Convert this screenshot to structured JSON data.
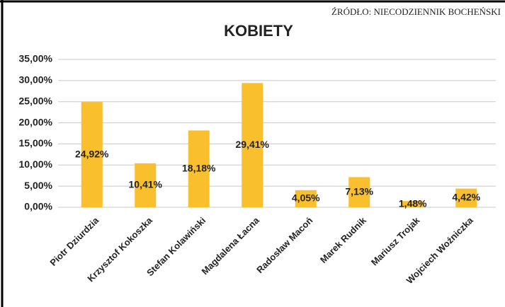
{
  "chart_data": {
    "type": "bar",
    "title": "KOBIETY",
    "source": "ŹRÓDŁO: NIECODZIENNIK BOCHEŃSKI",
    "categories": [
      "Piotr Dziurdzia",
      "Krzysztof Kokoszka",
      "Stefan Kolawiński",
      "Magdalena Łacna",
      "Radosław Macoń",
      "Marek Rudnik",
      "Mariusz Trojak",
      "Wojciech Woźniczka"
    ],
    "values": [
      24.92,
      10.41,
      18.18,
      29.41,
      4.05,
      7.13,
      1.48,
      4.42
    ],
    "value_labels": [
      "24,92%",
      "10,41%",
      "18,18%",
      "29,41%",
      "4,05%",
      "7,13%",
      "1,48%",
      "4,42%"
    ],
    "color": "#f9bf2c",
    "ylim": [
      0,
      35
    ],
    "yticks": [
      {
        "value": 0,
        "label": "0,00%"
      },
      {
        "value": 5,
        "label": "5,00%"
      },
      {
        "value": 10,
        "label": "10,00%"
      },
      {
        "value": 15,
        "label": "15,00%"
      },
      {
        "value": 20,
        "label": "20,00%"
      },
      {
        "value": 25,
        "label": "25,00%"
      },
      {
        "value": 30,
        "label": "30,00%"
      },
      {
        "value": 35,
        "label": "35,00%"
      }
    ],
    "grid": true
  }
}
